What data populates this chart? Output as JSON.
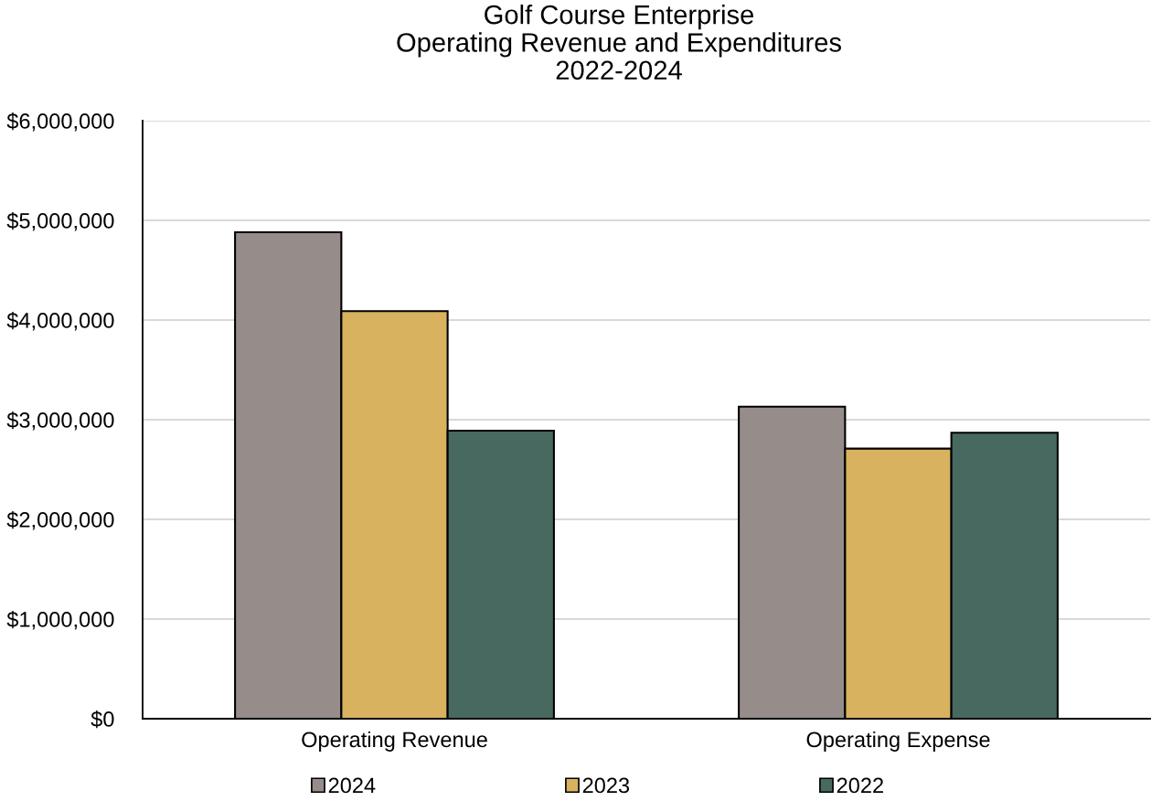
{
  "chart_data": {
    "type": "bar",
    "title": "Golf Course Enterprise\nOperating Revenue and Expenditures\n2022-2024",
    "categories": [
      "Operating Revenue",
      "Operating Expense"
    ],
    "series": [
      {
        "name": "2024",
        "color": "#968c8a",
        "values": [
          4880000,
          3130000
        ]
      },
      {
        "name": "2023",
        "color": "#d8b25e",
        "values": [
          4090000,
          2710000
        ]
      },
      {
        "name": "2022",
        "color": "#486960",
        "values": [
          2890000,
          2870000
        ]
      }
    ],
    "ylim": [
      0,
      6000000
    ],
    "yticks": [
      {
        "value": 0,
        "label": "$0"
      },
      {
        "value": 1000000,
        "label": "$1,000,000"
      },
      {
        "value": 2000000,
        "label": "$2,000,000"
      },
      {
        "value": 3000000,
        "label": "$3,000,000"
      },
      {
        "value": 4000000,
        "label": "$4,000,000"
      },
      {
        "value": 5000000,
        "label": "$5,000,000"
      },
      {
        "value": 6000000,
        "label": "$6,000,000"
      }
    ],
    "grid": "y",
    "legend": "bottom"
  }
}
